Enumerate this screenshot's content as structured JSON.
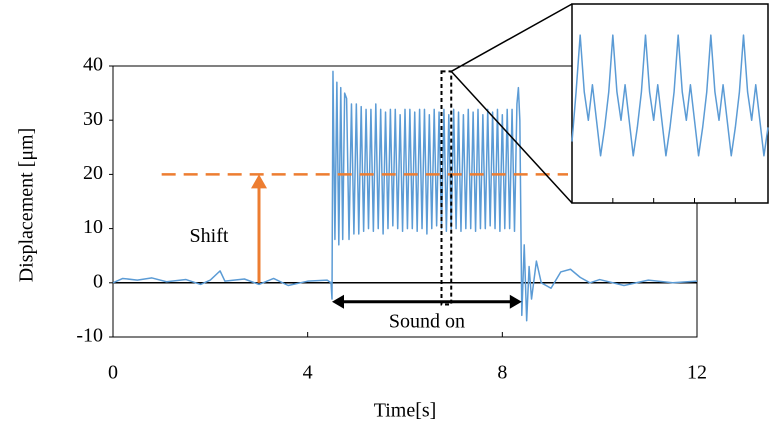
{
  "chart_data": [
    {
      "type": "line",
      "xlabel": "Time[s]",
      "ylabel": "Displacement  [μm]",
      "xlim": [
        0,
        12
      ],
      "xticks": [
        0,
        4,
        8,
        12
      ],
      "ylim": [
        -10,
        40
      ],
      "yticks": [
        -10,
        0,
        10,
        20,
        30,
        40
      ],
      "series": [
        {
          "color": "#5b9bd5",
          "x": [
            0,
            0.2,
            0.5,
            0.8,
            1.1,
            1.5,
            1.8,
            2.0,
            2.2,
            2.3,
            2.7,
            3.0,
            3.3,
            3.6,
            4.0,
            4.4,
            4.48,
            4.5,
            4.52,
            4.56,
            4.6,
            4.64,
            4.68,
            4.72,
            4.76,
            4.8,
            4.85,
            4.9,
            4.95,
            5.0,
            5.05,
            5.1,
            5.15,
            5.2,
            5.25,
            5.3,
            5.35,
            5.4,
            5.45,
            5.5,
            5.55,
            5.6,
            5.65,
            5.7,
            5.75,
            5.8,
            5.85,
            5.9,
            5.95,
            6.0,
            6.05,
            6.1,
            6.15,
            6.2,
            6.25,
            6.3,
            6.35,
            6.4,
            6.45,
            6.5,
            6.55,
            6.6,
            6.65,
            6.7,
            6.75,
            6.8,
            6.85,
            6.9,
            6.95,
            7.0,
            7.05,
            7.1,
            7.15,
            7.2,
            7.25,
            7.3,
            7.35,
            7.4,
            7.45,
            7.5,
            7.55,
            7.6,
            7.65,
            7.7,
            7.75,
            7.8,
            7.85,
            7.9,
            7.95,
            8.0,
            8.05,
            8.1,
            8.15,
            8.2,
            8.25,
            8.3,
            8.33,
            8.36,
            8.4,
            8.45,
            8.5,
            8.55,
            8.6,
            8.7,
            8.8,
            9.0,
            9.2,
            9.4,
            9.6,
            9.8,
            10.0,
            10.5,
            11.0,
            11.5,
            12.0
          ],
          "values": [
            0,
            0.8,
            0.5,
            0.9,
            0.2,
            0.6,
            -0.3,
            0.5,
            2.2,
            0.3,
            0.7,
            -0.3,
            0.8,
            -0.5,
            0.3,
            0.5,
            0,
            -3,
            39,
            8,
            37,
            7,
            36,
            8,
            35,
            34,
            8,
            33,
            9,
            33,
            9,
            32.5,
            9.5,
            32,
            10,
            32,
            9.5,
            33,
            10,
            32,
            9,
            31.5,
            10,
            32,
            10.5,
            32,
            10,
            31,
            9.5,
            32,
            10,
            32,
            10,
            31.5,
            9.5,
            32,
            10,
            32,
            9,
            31,
            10,
            32,
            10.5,
            31.5,
            10,
            32,
            9.5,
            31,
            10,
            32,
            10,
            31.5,
            9.5,
            31,
            10,
            32,
            10,
            31.5,
            9.5,
            32,
            10,
            31,
            10,
            32,
            10.5,
            31.5,
            10,
            32,
            9.5,
            31,
            10,
            32,
            10,
            32,
            9.5,
            33,
            36,
            30,
            -6,
            7,
            -7,
            3,
            -3,
            4,
            0,
            -1,
            2,
            2.5,
            1,
            0,
            0.6,
            -0.5,
            0.5,
            0,
            0.3
          ]
        }
      ],
      "reference_line": {
        "value": 20,
        "color": "#ed7d31"
      },
      "shift_arrow": {
        "x": 3,
        "from": 0,
        "to": 20,
        "label": "Shift",
        "color": "#ed7d31"
      },
      "sound_on": {
        "from": 4.5,
        "to": 8.4,
        "y": -3.5,
        "label": "Sound on"
      },
      "zoom_window": {
        "from": 6.75,
        "to": 6.95,
        "ylim": [
          -4,
          39
        ]
      }
    },
    {
      "type": "line",
      "xlim": [
        0,
        48
      ],
      "xticks": [
        10,
        20,
        30,
        40
      ],
      "ylim": [
        0,
        1
      ],
      "series": [
        {
          "color": "#5b9bd5",
          "values": [
            0.2,
            0.55,
            0.95,
            0.55,
            0.35,
            0.6,
            0.35,
            0.1,
            0.3,
            0.55,
            0.95,
            0.55,
            0.35,
            0.6,
            0.35,
            0.1,
            0.3,
            0.55,
            0.95,
            0.55,
            0.35,
            0.6,
            0.35,
            0.1,
            0.3,
            0.55,
            0.95,
            0.55,
            0.35,
            0.6,
            0.35,
            0.1,
            0.3,
            0.55,
            0.95,
            0.55,
            0.35,
            0.6,
            0.35,
            0.1,
            0.3,
            0.55,
            0.95,
            0.55,
            0.35,
            0.6,
            0.35,
            0.1,
            0.3
          ]
        }
      ]
    }
  ]
}
